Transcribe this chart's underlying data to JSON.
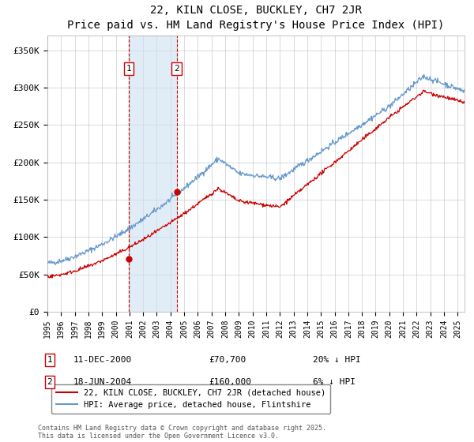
{
  "title": "22, KILN CLOSE, BUCKLEY, CH7 2JR",
  "subtitle": "Price paid vs. HM Land Registry's House Price Index (HPI)",
  "ylabel_ticks": [
    "£0",
    "£50K",
    "£100K",
    "£150K",
    "£200K",
    "£250K",
    "£300K",
    "£350K"
  ],
  "ylim": [
    0,
    370000
  ],
  "yticks": [
    0,
    50000,
    100000,
    150000,
    200000,
    250000,
    300000,
    350000
  ],
  "sale1": {
    "date_num": 2000.95,
    "price": 70700,
    "label": "1",
    "pct": "20% ↓ HPI",
    "date_str": "11-DEC-2000"
  },
  "sale2": {
    "date_num": 2004.46,
    "price": 160000,
    "label": "2",
    "pct": "6% ↓ HPI",
    "date_str": "18-JUN-2004"
  },
  "xmin": 1995.0,
  "xmax": 2025.5,
  "hpi_color": "#6699cc",
  "price_color": "#cc0000",
  "shade_color": "#cce0f0",
  "grid_color": "#cccccc",
  "legend_label_price": "22, KILN CLOSE, BUCKLEY, CH7 2JR (detached house)",
  "legend_label_hpi": "HPI: Average price, detached house, Flintshire",
  "footer": "Contains HM Land Registry data © Crown copyright and database right 2025.\nThis data is licensed under the Open Government Licence v3.0.",
  "xtick_years": [
    1995,
    1996,
    1997,
    1998,
    1999,
    2000,
    2001,
    2002,
    2003,
    2004,
    2005,
    2006,
    2007,
    2008,
    2009,
    2010,
    2011,
    2012,
    2013,
    2014,
    2015,
    2016,
    2017,
    2018,
    2019,
    2020,
    2021,
    2022,
    2023,
    2024,
    2025
  ]
}
